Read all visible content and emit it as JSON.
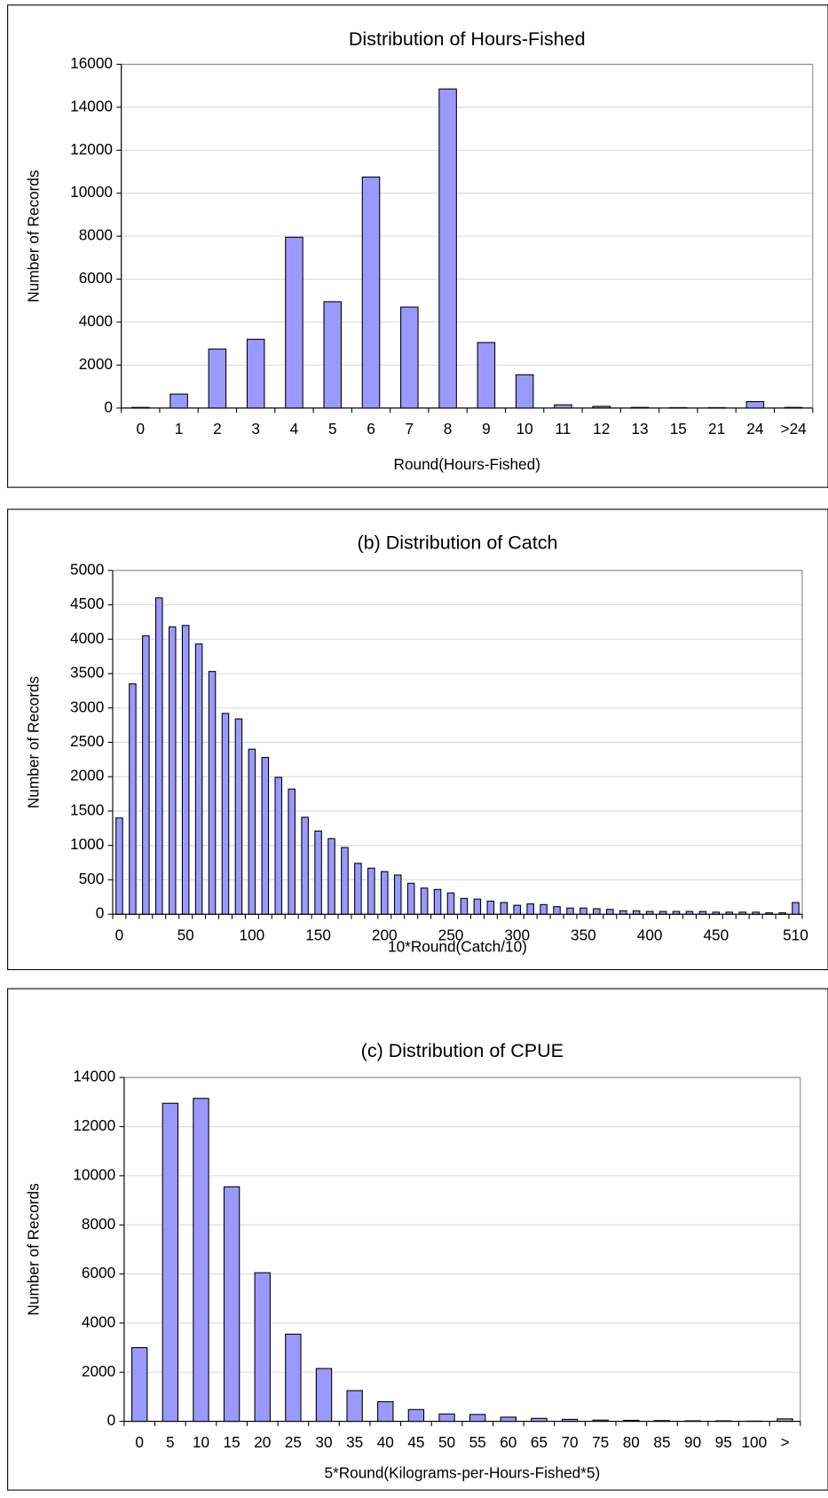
{
  "chart_data": [
    {
      "type": "bar",
      "title": "Distribution of Hours-Fished",
      "xlabel": "Round(Hours-Fished)",
      "ylabel": "Number of Records",
      "categories": [
        "0",
        "1",
        "2",
        "3",
        "4",
        "5",
        "6",
        "7",
        "8",
        "9",
        "10",
        "11",
        "12",
        "13",
        "15",
        "21",
        "24",
        ">24"
      ],
      "values": [
        30,
        650,
        2750,
        3200,
        7950,
        4950,
        10750,
        4700,
        14850,
        3050,
        1550,
        150,
        80,
        30,
        20,
        20,
        300,
        30
      ],
      "color": "#9999ff",
      "ylim": [
        0,
        16000
      ],
      "yticks": [
        0,
        2000,
        4000,
        6000,
        8000,
        10000,
        12000,
        14000,
        16000
      ],
      "grid": true
    },
    {
      "type": "bar",
      "title": "(b) Distribution of Catch",
      "xlabel": "10*Round(Catch/10)",
      "ylabel": "Number of Records",
      "categories": [
        "0",
        null,
        null,
        null,
        null,
        "50",
        null,
        null,
        null,
        null,
        "100",
        null,
        null,
        null,
        null,
        "150",
        null,
        null,
        null,
        null,
        "200",
        null,
        null,
        null,
        null,
        "250",
        null,
        null,
        null,
        null,
        "300",
        null,
        null,
        null,
        null,
        "350",
        null,
        null,
        null,
        null,
        "400",
        null,
        null,
        null,
        null,
        "450",
        null,
        null,
        null,
        null,
        null,
        "510"
      ],
      "values": [
        1400,
        3350,
        4050,
        4600,
        4180,
        4200,
        3930,
        3530,
        2920,
        2840,
        2400,
        2280,
        1990,
        1820,
        1410,
        1210,
        1100,
        970,
        740,
        670,
        620,
        570,
        450,
        380,
        360,
        310,
        230,
        220,
        190,
        170,
        130,
        150,
        140,
        110,
        90,
        90,
        80,
        70,
        50,
        50,
        40,
        40,
        40,
        40,
        40,
        30,
        30,
        30,
        30,
        20,
        20,
        170
      ],
      "color": "#9999ff",
      "ylim": [
        0,
        5000
      ],
      "yticks": [
        0,
        500,
        1000,
        1500,
        2000,
        2500,
        3000,
        3500,
        4000,
        4500,
        5000
      ],
      "grid": true
    },
    {
      "type": "bar",
      "title": "(c) Distribution of CPUE",
      "xlabel": "5*Round(Kilograms-per-Hours-Fished*5)",
      "ylabel": "Number of Records",
      "categories": [
        "0",
        "5",
        "10",
        "15",
        "20",
        "25",
        "30",
        "35",
        "40",
        "45",
        "50",
        "55",
        "60",
        "65",
        "70",
        "75",
        "80",
        "85",
        "90",
        "95",
        "100",
        ">"
      ],
      "values": [
        3000,
        12950,
        13150,
        9550,
        6050,
        3550,
        2150,
        1250,
        800,
        480,
        300,
        280,
        170,
        120,
        80,
        50,
        40,
        30,
        20,
        20,
        10,
        100
      ],
      "color": "#9999ff",
      "ylim": [
        0,
        14000
      ],
      "yticks": [
        0,
        2000,
        4000,
        6000,
        8000,
        10000,
        12000,
        14000
      ],
      "grid": true
    }
  ]
}
